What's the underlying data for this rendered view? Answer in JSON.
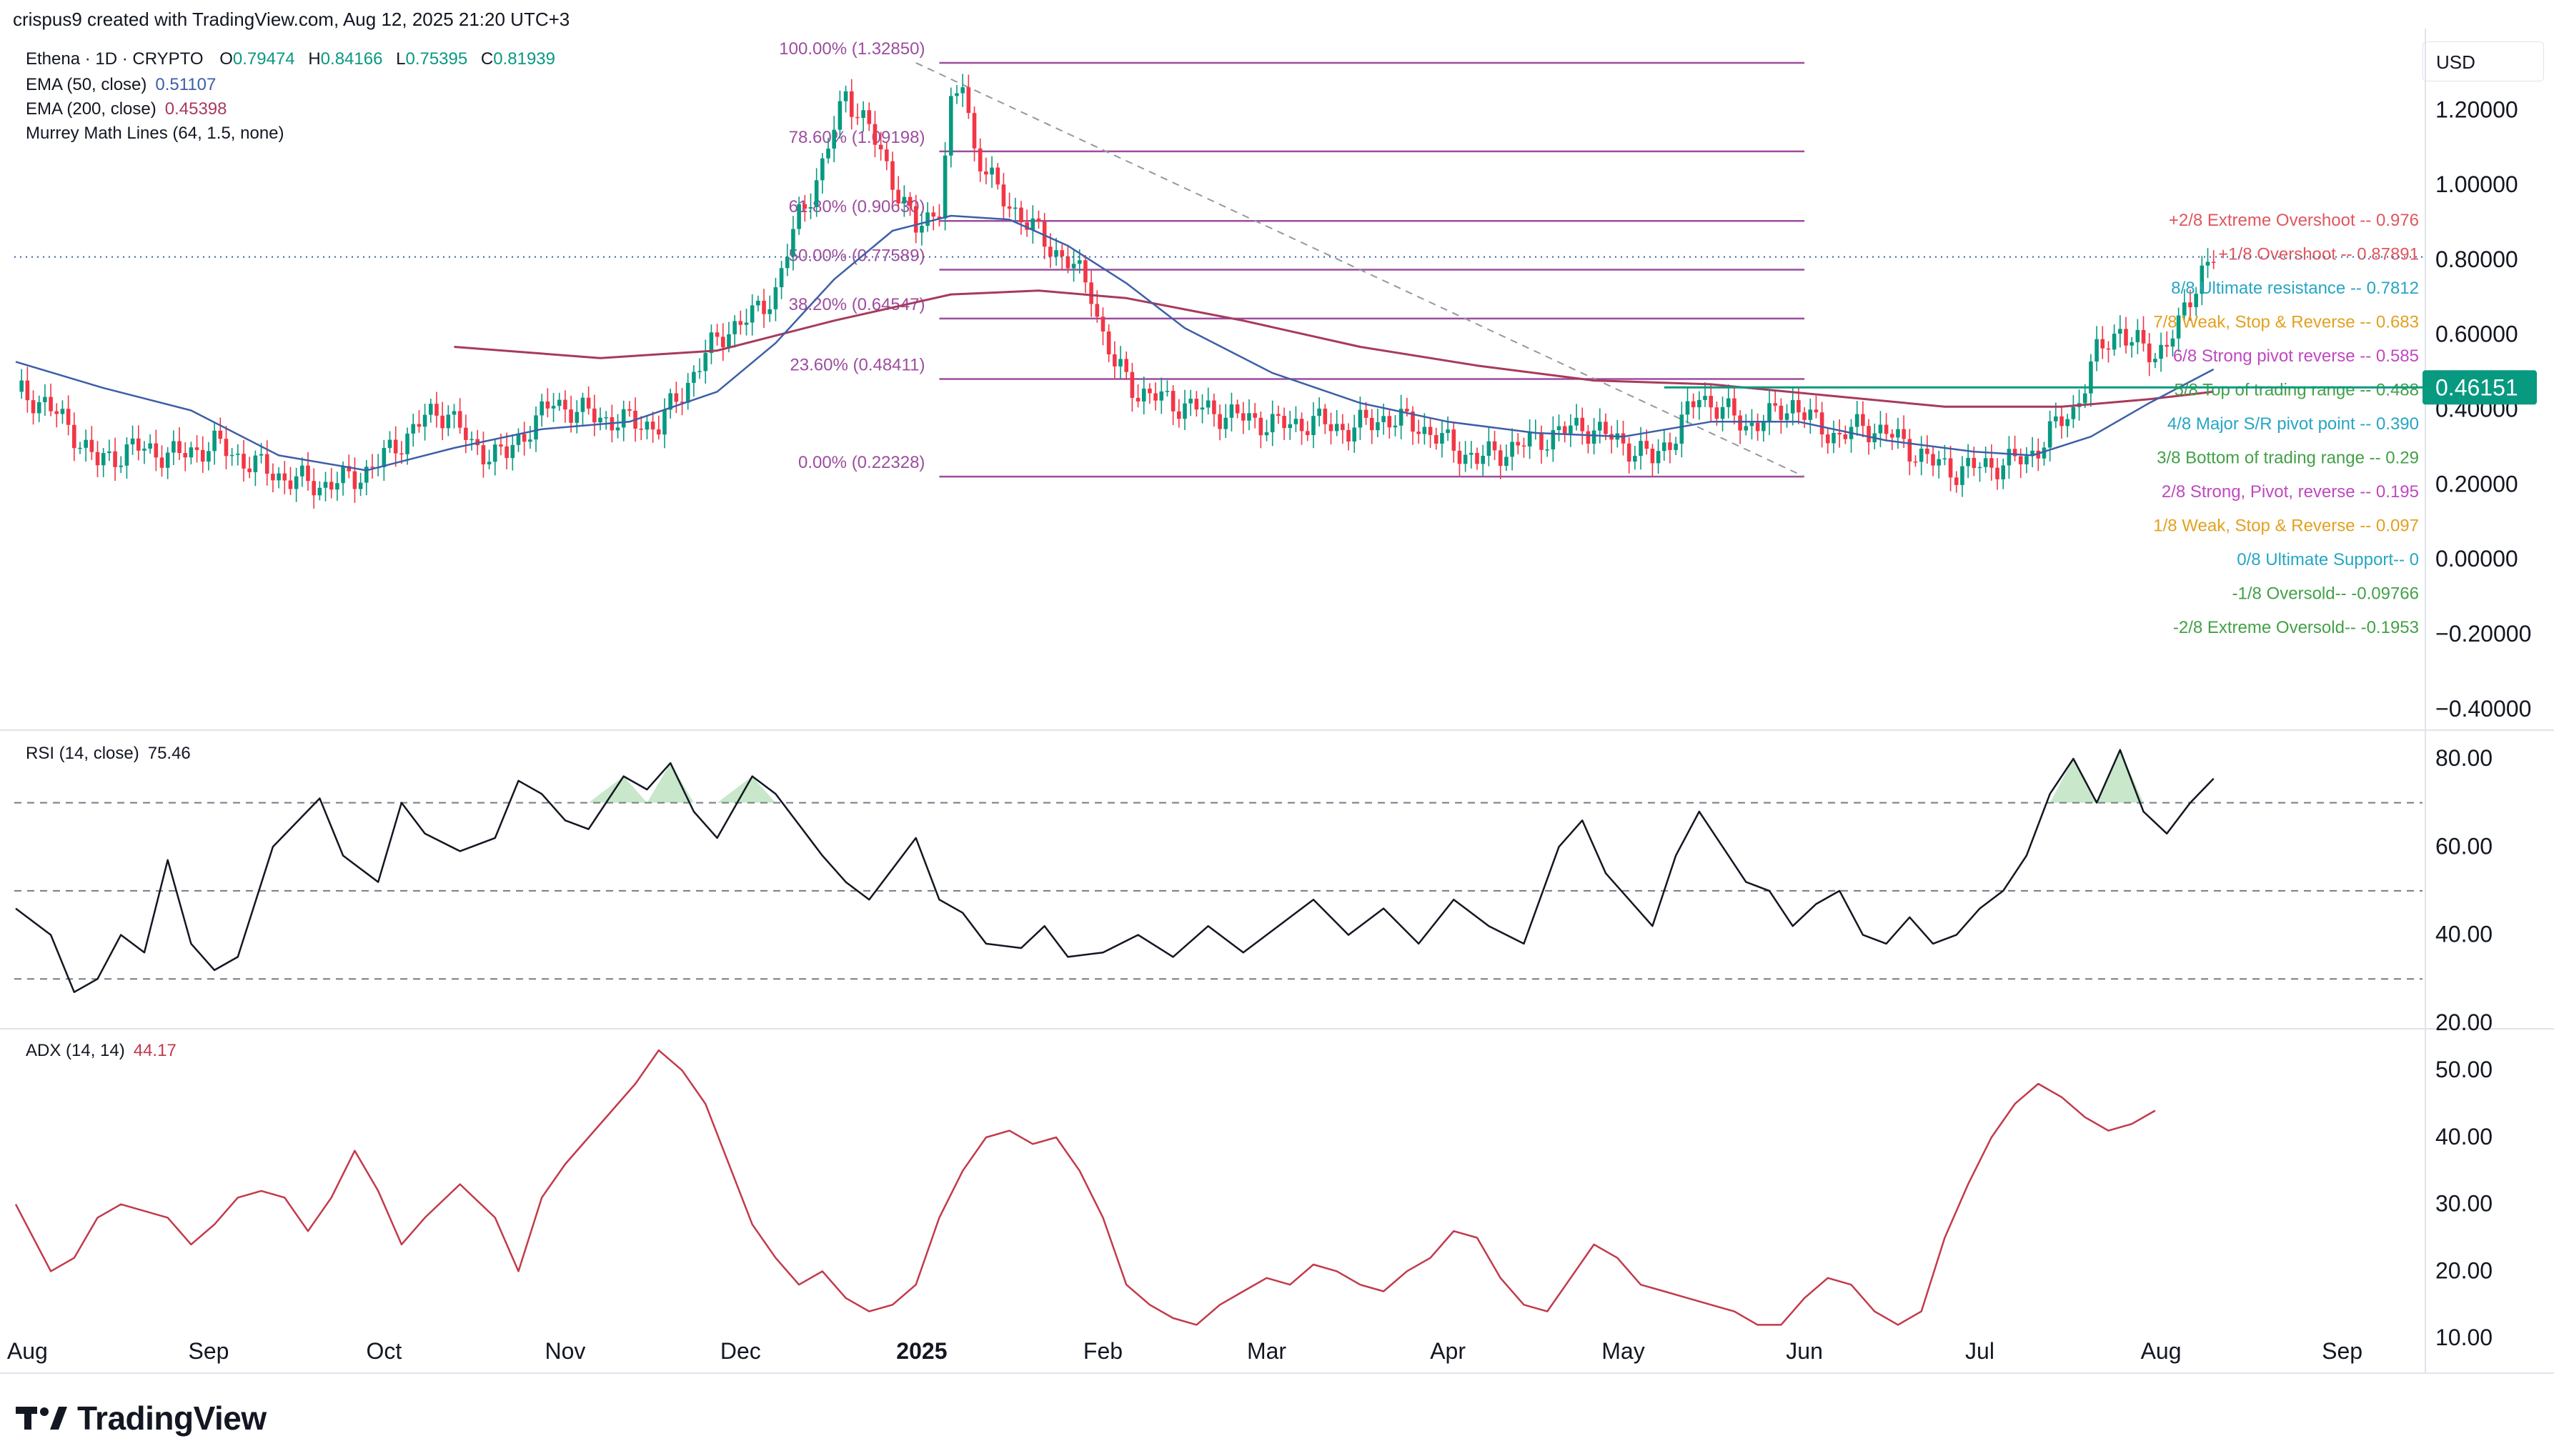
{
  "header": {
    "text": "crispus9 created with TradingView.com, Aug 12, 2025 21:20 UTC+3"
  },
  "legend": {
    "symbol": "Ethena · 1D · CRYPTO",
    "o_label": "O",
    "o": "0.79474",
    "h_label": "H",
    "h": "0.84166",
    "l_label": "L",
    "l": "0.75395",
    "c_label": "C",
    "c": "0.81939",
    "ema50_label": "EMA (50, close)",
    "ema50": "0.51107",
    "ema200_label": "EMA (200, close)",
    "ema200": "0.45398",
    "murrey_label": "Murrey Math Lines (64, 1.5, none)"
  },
  "currency": "USD",
  "price_tag": "0.46151",
  "rsi_legend": {
    "label": "RSI (14, close)",
    "value": "75.46"
  },
  "adx_legend": {
    "label": "ADX (14, 14)",
    "value": "44.17"
  },
  "brand": {
    "name": "TradingView"
  },
  "colors": {
    "up": "#089981",
    "down": "#f23645",
    "ema50": "#3d5fa8",
    "ema200": "#a83a5c",
    "fib": "#9c4d9e",
    "rsi": "#131722",
    "adx": "#c23a4b",
    "tag": "#089981"
  },
  "chart_data": [
    {
      "type": "candlestick",
      "ylim": [
        -0.45,
        1.42
      ],
      "y_ticks": [
        "1.20000",
        "1.00000",
        "0.80000",
        "0.60000",
        "0.40000",
        "0.20000",
        "0.00000",
        "−0.20000",
        "−0.40000"
      ],
      "x_ticks": [
        "Aug",
        "Sep",
        "Oct",
        "Nov",
        "Dec",
        "2025",
        "Feb",
        "Mar",
        "Apr",
        "May",
        "Jun",
        "Jul",
        "Aug",
        "Sep"
      ],
      "close_path": [
        [
          0,
          0.45
        ],
        [
          5,
          0.42
        ],
        [
          10,
          0.34
        ],
        [
          14,
          0.26
        ],
        [
          20,
          0.3
        ],
        [
          28,
          0.28
        ],
        [
          34,
          0.31
        ],
        [
          40,
          0.26
        ],
        [
          46,
          0.22
        ],
        [
          52,
          0.2
        ],
        [
          58,
          0.22
        ],
        [
          62,
          0.26
        ],
        [
          66,
          0.32
        ],
        [
          70,
          0.38
        ],
        [
          74,
          0.4
        ],
        [
          78,
          0.3
        ],
        [
          84,
          0.28
        ],
        [
          88,
          0.36
        ],
        [
          92,
          0.42
        ],
        [
          96,
          0.4
        ],
        [
          100,
          0.38
        ],
        [
          104,
          0.37
        ],
        [
          110,
          0.36
        ],
        [
          114,
          0.45
        ],
        [
          118,
          0.55
        ],
        [
          122,
          0.62
        ],
        [
          126,
          0.65
        ],
        [
          130,
          0.72
        ],
        [
          134,
          0.92
        ],
        [
          138,
          1.05
        ],
        [
          142,
          1.25
        ],
        [
          146,
          1.15
        ],
        [
          150,
          1.02
        ],
        [
          154,
          0.88
        ],
        [
          158,
          0.95
        ],
        [
          160,
          1.2
        ],
        [
          162,
          1.28
        ],
        [
          164,
          1.1
        ],
        [
          168,
          0.98
        ],
        [
          172,
          0.92
        ],
        [
          176,
          0.85
        ],
        [
          180,
          0.8
        ],
        [
          184,
          0.72
        ],
        [
          186,
          0.6
        ],
        [
          188,
          0.52
        ],
        [
          192,
          0.45
        ],
        [
          198,
          0.42
        ],
        [
          204,
          0.4
        ],
        [
          210,
          0.38
        ],
        [
          216,
          0.36
        ],
        [
          222,
          0.37
        ],
        [
          228,
          0.35
        ],
        [
          234,
          0.38
        ],
        [
          240,
          0.36
        ],
        [
          246,
          0.3
        ],
        [
          250,
          0.27
        ],
        [
          256,
          0.3
        ],
        [
          262,
          0.33
        ],
        [
          268,
          0.36
        ],
        [
          274,
          0.32
        ],
        [
          280,
          0.27
        ],
        [
          284,
          0.34
        ],
        [
          288,
          0.44
        ],
        [
          292,
          0.4
        ],
        [
          296,
          0.36
        ],
        [
          300,
          0.38
        ],
        [
          304,
          0.42
        ],
        [
          308,
          0.36
        ],
        [
          312,
          0.33
        ],
        [
          316,
          0.36
        ],
        [
          320,
          0.34
        ],
        [
          324,
          0.3
        ],
        [
          328,
          0.26
        ],
        [
          332,
          0.24
        ],
        [
          336,
          0.25
        ],
        [
          340,
          0.26
        ],
        [
          344,
          0.27
        ],
        [
          348,
          0.34
        ],
        [
          352,
          0.4
        ],
        [
          356,
          0.55
        ],
        [
          360,
          0.62
        ],
        [
          362,
          0.58
        ],
        [
          366,
          0.55
        ],
        [
          370,
          0.62
        ],
        [
          372,
          0.7
        ],
        [
          374,
          0.78
        ],
        [
          376,
          0.81
        ]
      ],
      "ema50_path": [
        [
          0,
          0.53
        ],
        [
          15,
          0.46
        ],
        [
          30,
          0.4
        ],
        [
          45,
          0.28
        ],
        [
          60,
          0.24
        ],
        [
          75,
          0.3
        ],
        [
          90,
          0.35
        ],
        [
          105,
          0.37
        ],
        [
          120,
          0.45
        ],
        [
          130,
          0.58
        ],
        [
          140,
          0.75
        ],
        [
          150,
          0.88
        ],
        [
          160,
          0.92
        ],
        [
          170,
          0.91
        ],
        [
          180,
          0.84
        ],
        [
          190,
          0.74
        ],
        [
          200,
          0.62
        ],
        [
          215,
          0.5
        ],
        [
          230,
          0.42
        ],
        [
          245,
          0.37
        ],
        [
          260,
          0.34
        ],
        [
          275,
          0.33
        ],
        [
          290,
          0.37
        ],
        [
          305,
          0.37
        ],
        [
          320,
          0.32
        ],
        [
          335,
          0.29
        ],
        [
          345,
          0.28
        ],
        [
          355,
          0.33
        ],
        [
          365,
          0.42
        ],
        [
          376,
          0.51
        ]
      ],
      "ema200_path": [
        [
          75,
          0.57
        ],
        [
          100,
          0.54
        ],
        [
          120,
          0.56
        ],
        [
          140,
          0.64
        ],
        [
          160,
          0.71
        ],
        [
          175,
          0.72
        ],
        [
          190,
          0.7
        ],
        [
          210,
          0.64
        ],
        [
          230,
          0.57
        ],
        [
          250,
          0.52
        ],
        [
          270,
          0.48
        ],
        [
          290,
          0.47
        ],
        [
          310,
          0.44
        ],
        [
          330,
          0.41
        ],
        [
          350,
          0.41
        ],
        [
          365,
          0.43
        ],
        [
          376,
          0.45
        ]
      ],
      "fib_levels": [
        {
          "label": "100.00% (1.32850)",
          "value": 1.3285
        },
        {
          "label": "78.60% (1.09198)",
          "value": 1.09198
        },
        {
          "label": "61.80% (0.90630)",
          "value": 0.9063
        },
        {
          "label": "50.00% (0.77589)",
          "value": 0.77589
        },
        {
          "label": "38.20% (0.64547)",
          "value": 0.64547
        },
        {
          "label": "23.60% (0.48411)",
          "value": 0.48411
        },
        {
          "label": "0.00% (0.22328)",
          "value": 0.22328
        }
      ],
      "murrey_levels": [
        {
          "label": "+2/8 Extreme Overshoot --  0.976",
          "color": "#e0565e"
        },
        {
          "label": "+1/8 Overshoot --  0.87891",
          "color": "#e0565e"
        },
        {
          "label": "8/8 Ultimate resistance --  0.7812",
          "color": "#26a6c4"
        },
        {
          "label": "7/8 Weak, Stop & Reverse --  0.683",
          "color": "#e3a020"
        },
        {
          "label": "6/8 Strong pivot reverse --  0.585",
          "color": "#c048c0"
        },
        {
          "label": "5/8 Top of trading range --  0.488",
          "color": "#43a047"
        },
        {
          "label": "4/8 Major S/R pivot point --  0.390",
          "color": "#26a6c4"
        },
        {
          "label": "3/8 Bottom of trading range --  0.29",
          "color": "#43a047"
        },
        {
          "label": "2/8 Strong, Pivot, reverse --  0.195",
          "color": "#c048c0"
        },
        {
          "label": "1/8 Weak, Stop & Reverse --  0.097",
          "color": "#e3a020"
        },
        {
          "label": "0/8 Ultimate Support--  0",
          "color": "#26a6c4"
        },
        {
          "label": "-1/8 Oversold--  -0.09766",
          "color": "#43a047"
        },
        {
          "label": "-2/8 Extreme Oversold--  -0.1953",
          "color": "#43a047"
        }
      ]
    },
    {
      "type": "line",
      "name": "RSI (14, close)",
      "ylim": [
        19,
        86
      ],
      "y_ticks": [
        "80.00",
        "60.00",
        "40.00",
        "20.00"
      ],
      "levels": [
        70,
        50,
        30
      ],
      "path": [
        [
          0,
          46
        ],
        [
          6,
          40
        ],
        [
          10,
          27
        ],
        [
          14,
          30
        ],
        [
          18,
          40
        ],
        [
          22,
          36
        ],
        [
          26,
          57
        ],
        [
          30,
          38
        ],
        [
          34,
          32
        ],
        [
          38,
          35
        ],
        [
          44,
          60
        ],
        [
          52,
          71
        ],
        [
          56,
          58
        ],
        [
          62,
          52
        ],
        [
          66,
          70
        ],
        [
          70,
          63
        ],
        [
          76,
          59
        ],
        [
          82,
          62
        ],
        [
          86,
          75
        ],
        [
          90,
          72
        ],
        [
          94,
          66
        ],
        [
          98,
          64
        ],
        [
          104,
          76
        ],
        [
          108,
          73
        ],
        [
          112,
          79
        ],
        [
          116,
          68
        ],
        [
          120,
          62
        ],
        [
          126,
          76
        ],
        [
          130,
          72
        ],
        [
          134,
          65
        ],
        [
          138,
          58
        ],
        [
          142,
          52
        ],
        [
          146,
          48
        ],
        [
          150,
          55
        ],
        [
          154,
          62
        ],
        [
          158,
          48
        ],
        [
          162,
          45
        ],
        [
          166,
          38
        ],
        [
          172,
          37
        ],
        [
          176,
          42
        ],
        [
          180,
          35
        ],
        [
          186,
          36
        ],
        [
          192,
          40
        ],
        [
          198,
          35
        ],
        [
          204,
          42
        ],
        [
          210,
          36
        ],
        [
          216,
          42
        ],
        [
          222,
          48
        ],
        [
          228,
          40
        ],
        [
          234,
          46
        ],
        [
          240,
          38
        ],
        [
          246,
          48
        ],
        [
          252,
          42
        ],
        [
          258,
          38
        ],
        [
          264,
          60
        ],
        [
          268,
          66
        ],
        [
          272,
          54
        ],
        [
          276,
          48
        ],
        [
          280,
          42
        ],
        [
          284,
          58
        ],
        [
          288,
          68
        ],
        [
          292,
          60
        ],
        [
          296,
          52
        ],
        [
          300,
          50
        ],
        [
          304,
          42
        ],
        [
          308,
          47
        ],
        [
          312,
          50
        ],
        [
          316,
          40
        ],
        [
          320,
          38
        ],
        [
          324,
          44
        ],
        [
          328,
          38
        ],
        [
          332,
          40
        ],
        [
          336,
          46
        ],
        [
          340,
          50
        ],
        [
          344,
          58
        ],
        [
          348,
          72
        ],
        [
          352,
          80
        ],
        [
          356,
          70
        ],
        [
          360,
          82
        ],
        [
          364,
          68
        ],
        [
          368,
          63
        ],
        [
          372,
          70
        ],
        [
          376,
          75.5
        ]
      ]
    },
    {
      "type": "line",
      "name": "ADX (14, 14)",
      "ylim": [
        5,
        56
      ],
      "y_ticks": [
        "50.00",
        "40.00",
        "30.00",
        "20.00",
        "10.00"
      ],
      "path": [
        [
          0,
          30
        ],
        [
          6,
          20
        ],
        [
          10,
          22
        ],
        [
          14,
          28
        ],
        [
          18,
          30
        ],
        [
          22,
          29
        ],
        [
          26,
          28
        ],
        [
          30,
          24
        ],
        [
          34,
          27
        ],
        [
          38,
          31
        ],
        [
          42,
          32
        ],
        [
          46,
          31
        ],
        [
          50,
          26
        ],
        [
          54,
          31
        ],
        [
          58,
          38
        ],
        [
          62,
          32
        ],
        [
          66,
          24
        ],
        [
          70,
          28
        ],
        [
          76,
          33
        ],
        [
          82,
          28
        ],
        [
          86,
          20
        ],
        [
          90,
          31
        ],
        [
          94,
          36
        ],
        [
          98,
          40
        ],
        [
          102,
          44
        ],
        [
          106,
          48
        ],
        [
          110,
          53
        ],
        [
          114,
          50
        ],
        [
          118,
          45
        ],
        [
          122,
          36
        ],
        [
          126,
          27
        ],
        [
          130,
          22
        ],
        [
          134,
          18
        ],
        [
          138,
          20
        ],
        [
          142,
          16
        ],
        [
          146,
          14
        ],
        [
          150,
          15
        ],
        [
          154,
          18
        ],
        [
          158,
          28
        ],
        [
          162,
          35
        ],
        [
          166,
          40
        ],
        [
          170,
          41
        ],
        [
          174,
          39
        ],
        [
          178,
          40
        ],
        [
          182,
          35
        ],
        [
          186,
          28
        ],
        [
          190,
          18
        ],
        [
          194,
          15
        ],
        [
          198,
          13
        ],
        [
          202,
          12
        ],
        [
          206,
          15
        ],
        [
          210,
          17
        ],
        [
          214,
          19
        ],
        [
          218,
          18
        ],
        [
          222,
          21
        ],
        [
          226,
          20
        ],
        [
          230,
          18
        ],
        [
          234,
          17
        ],
        [
          238,
          20
        ],
        [
          242,
          22
        ],
        [
          246,
          26
        ],
        [
          250,
          25
        ],
        [
          254,
          19
        ],
        [
          258,
          15
        ],
        [
          262,
          14
        ],
        [
          266,
          19
        ],
        [
          270,
          24
        ],
        [
          274,
          22
        ],
        [
          278,
          18
        ],
        [
          282,
          17
        ],
        [
          286,
          16
        ],
        [
          290,
          15
        ],
        [
          294,
          14
        ],
        [
          298,
          12
        ],
        [
          302,
          12
        ],
        [
          306,
          16
        ],
        [
          310,
          19
        ],
        [
          314,
          18
        ],
        [
          318,
          14
        ],
        [
          322,
          12
        ],
        [
          326,
          14
        ],
        [
          330,
          25
        ],
        [
          334,
          33
        ],
        [
          338,
          40
        ],
        [
          342,
          45
        ],
        [
          346,
          48
        ],
        [
          350,
          46
        ],
        [
          354,
          43
        ],
        [
          358,
          41
        ],
        [
          362,
          42
        ],
        [
          366,
          44
        ]
      ]
    }
  ]
}
